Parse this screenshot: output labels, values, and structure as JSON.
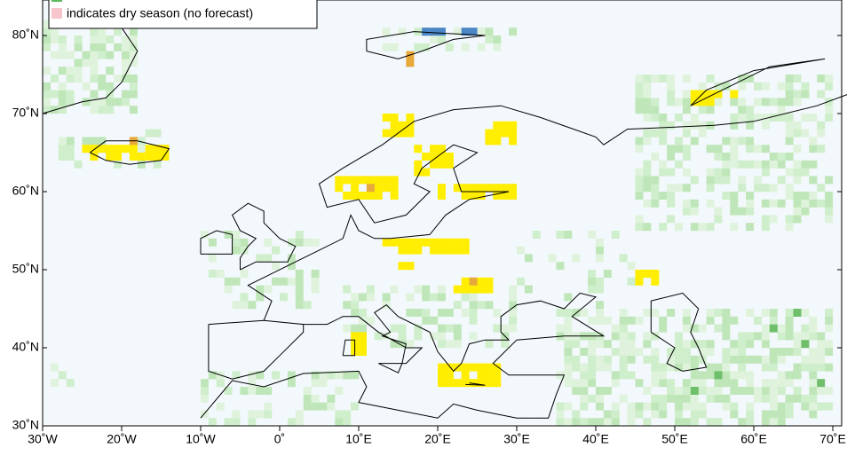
{
  "map": {
    "legend": [
      "indicates dry season (no forecast)"
    ],
    "y_axis_labels": [
      "30˚N",
      "40˚N",
      "50˚N",
      "60˚N",
      "70˚N",
      "80˚N"
    ],
    "x_axis_labels": [
      "30˚W",
      "20˚W",
      "10˚W",
      "0˚",
      "10˚E",
      "20˚E",
      "30˚E",
      "40˚E",
      "50˚E",
      "60˚E",
      "70˚E"
    ]
  }
}
